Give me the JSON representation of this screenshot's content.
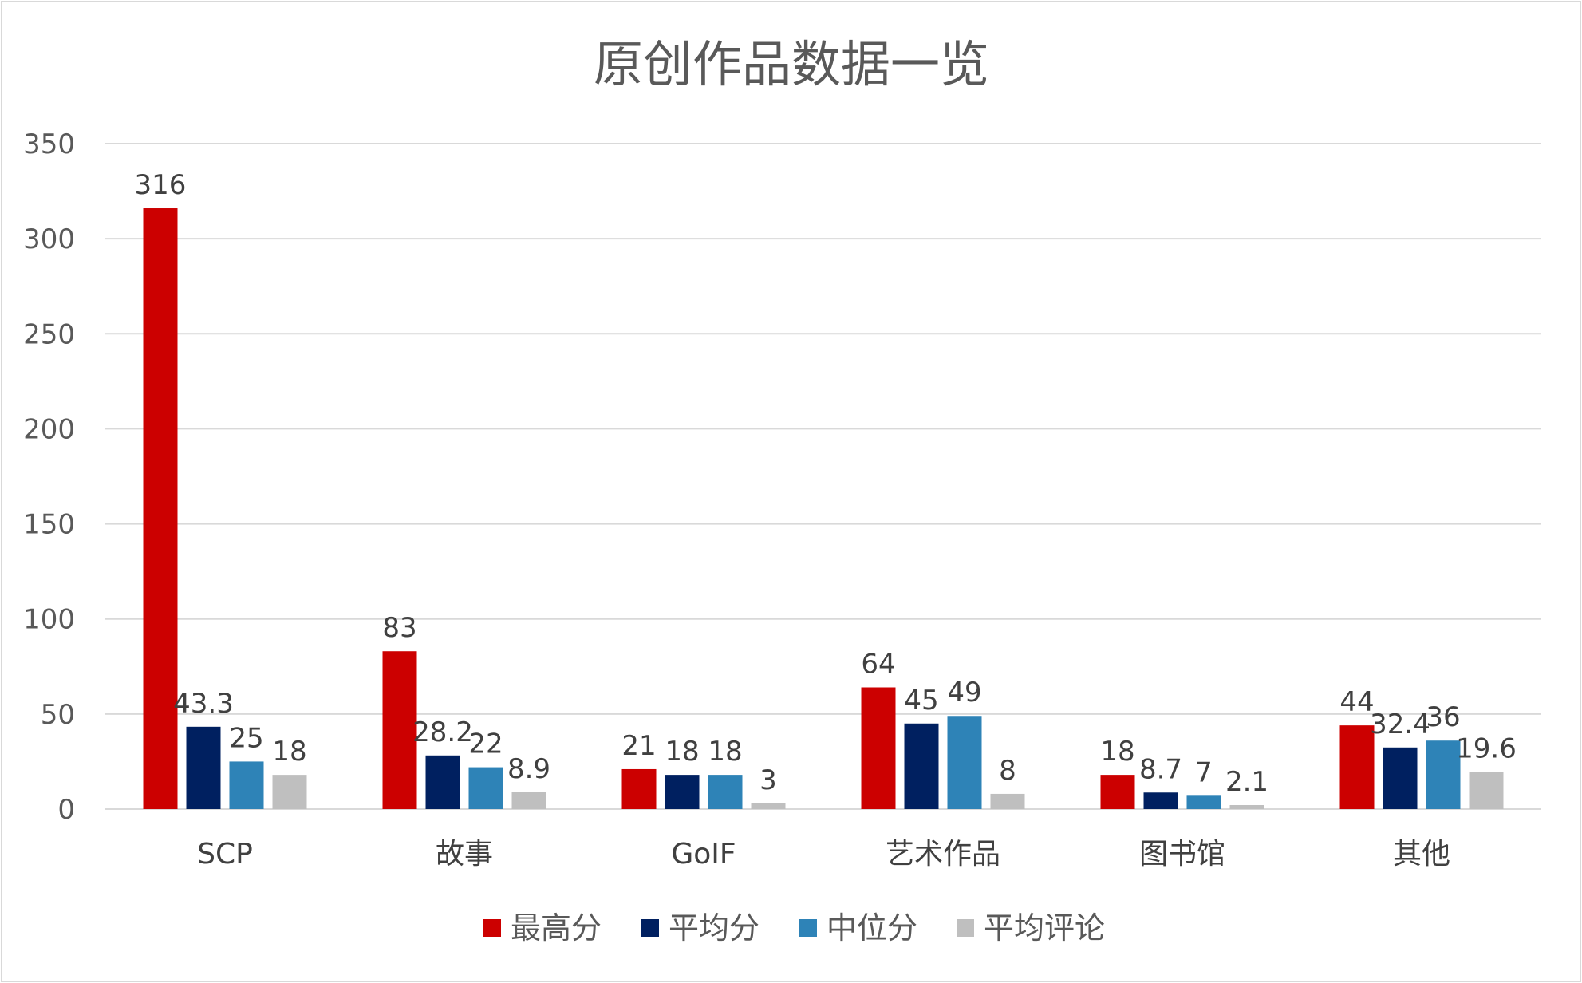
{
  "chart_data": {
    "type": "bar",
    "title": "原创作品数据一览",
    "xlabel": "",
    "ylabel": "",
    "ylim": [
      0,
      350
    ],
    "yticks": [
      0,
      50,
      100,
      150,
      200,
      250,
      300,
      350
    ],
    "grid": true,
    "legend_position": "bottom",
    "categories": [
      "SCP",
      "故事",
      "GoIF",
      "艺术作品",
      "图书馆",
      "其他"
    ],
    "series": [
      {
        "name": "最高分",
        "color": "#cc0000",
        "values": [
          316,
          83,
          21,
          64,
          18,
          44
        ],
        "labels": [
          "316",
          "83",
          "21",
          "64",
          "18",
          "44"
        ]
      },
      {
        "name": "平均分",
        "color": "#002060",
        "values": [
          43.3,
          28.2,
          18,
          45,
          8.7,
          32.4
        ],
        "labels": [
          "43.3",
          "28.2",
          "18",
          "45",
          "8.7",
          "32.4"
        ]
      },
      {
        "name": "中位分",
        "color": "#2e83b7",
        "values": [
          25,
          22,
          18,
          49,
          7,
          36
        ],
        "labels": [
          "25",
          "22",
          "18",
          "49",
          "7",
          "36"
        ]
      },
      {
        "name": "平均评论",
        "color": "#bfbfbf",
        "values": [
          18,
          8.9,
          3,
          8,
          2.1,
          19.6
        ],
        "labels": [
          "18",
          "8.9",
          "3",
          "8",
          "2.1",
          "19.6"
        ]
      }
    ]
  }
}
